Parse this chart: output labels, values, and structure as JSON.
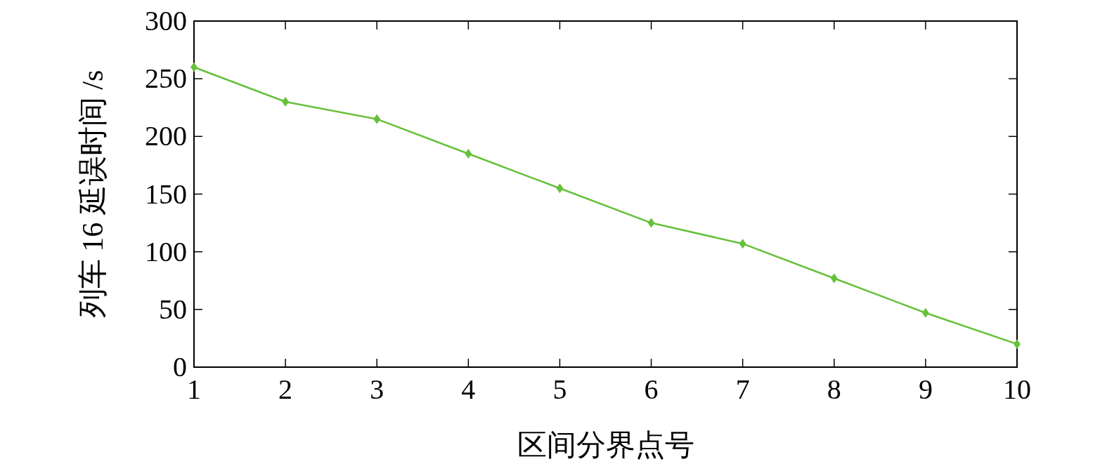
{
  "chart_data": {
    "type": "line",
    "xlabel": "区间分界点号",
    "ylabel": "列车 16 延误时间 /s",
    "x": [
      1,
      2,
      3,
      4,
      5,
      6,
      7,
      8,
      9,
      10
    ],
    "series": [
      {
        "color": "#66c03a",
        "values": [
          260,
          230,
          215,
          185,
          155,
          125,
          107,
          77,
          47,
          20
        ]
      }
    ],
    "xlim": [
      1,
      10
    ],
    "xticks": [
      1,
      2,
      3,
      4,
      5,
      6,
      7,
      8,
      9,
      10
    ],
    "ylim": [
      0,
      300
    ],
    "yticks": [
      0,
      50,
      100,
      150,
      200,
      250,
      300
    ],
    "marker": "diamond",
    "line_style": "solid",
    "grid": false
  }
}
